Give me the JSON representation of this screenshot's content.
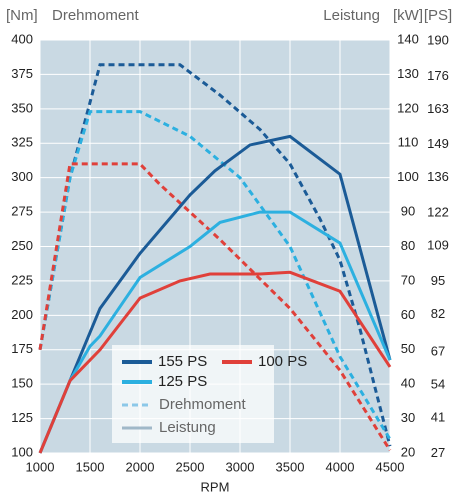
{
  "chart_data": {
    "type": "line",
    "y_unit": "[Nm]",
    "y_label": "Drehmoment",
    "y2_label": "Leistung",
    "y2_unit": "[kW]",
    "y3_unit": "[PS]",
    "x_label": "RPM",
    "xlim": [
      1000,
      4500
    ],
    "xticks": [
      1000,
      1500,
      2000,
      2500,
      3000,
      3500,
      4000,
      4500
    ],
    "ylim": [
      100,
      400
    ],
    "yticks": [
      100,
      125,
      150,
      175,
      200,
      225,
      250,
      275,
      300,
      325,
      350,
      375,
      400
    ],
    "y2lim": [
      20,
      140
    ],
    "y2ticks": [
      20,
      30,
      40,
      50,
      60,
      70,
      80,
      90,
      100,
      110,
      120,
      130,
      140
    ],
    "y3lim": [
      27.2,
      190.4
    ],
    "y3ticks": [
      27,
      41,
      54,
      67,
      82,
      95,
      109,
      122,
      136,
      149,
      163,
      176,
      190
    ],
    "grid": true,
    "background": "#c9d9e3",
    "series": [
      {
        "name": "155 PS",
        "color": "#1b5b97",
        "style": "dashed",
        "x": [
          1000,
          1300,
          1600,
          2000,
          2400,
          2800,
          3200,
          3500,
          3800,
          4000,
          4200,
          4500
        ],
        "values": [
          175,
          300,
          382,
          382,
          382,
          360,
          335,
          310,
          270,
          240,
          190,
          105
        ]
      },
      {
        "name": "125 PS",
        "color": "#2cb0e0",
        "style": "dashed",
        "x": [
          1000,
          1300,
          1500,
          2000,
          2500,
          3000,
          3500,
          4000,
          4500
        ],
        "values": [
          175,
          300,
          348,
          348,
          330,
          300,
          250,
          170,
          110
        ]
      },
      {
        "name": "100 PS",
        "color": "#e0403a",
        "style": "dashed",
        "x": [
          1000,
          1300,
          2000,
          2200,
          2800,
          3500,
          4000,
          4500
        ],
        "values": [
          175,
          310,
          310,
          295,
          255,
          205,
          160,
          102
        ]
      },
      {
        "name": "155 PS",
        "color": "#1b5b97",
        "style": "solid",
        "axis": "y2",
        "x": [
          1000,
          1300,
          1600,
          2000,
          2500,
          2750,
          3100,
          3500,
          4000,
          4500
        ],
        "values": [
          20,
          41,
          62,
          78,
          95,
          102,
          109.5,
          112,
          101,
          47
        ]
      },
      {
        "name": "125 PS",
        "color": "#2cb0e0",
        "style": "solid",
        "axis": "y2",
        "x": [
          1000,
          1300,
          1500,
          1600,
          2000,
          2500,
          2800,
          3200,
          3500,
          4000,
          4500
        ],
        "values": [
          20,
          41,
          51,
          54,
          71,
          80,
          87,
          90,
          90,
          81,
          47
        ]
      },
      {
        "name": "100 PS",
        "color": "#e0403a",
        "style": "solid",
        "axis": "y2",
        "x": [
          1000,
          1300,
          1600,
          2000,
          2400,
          2700,
          3200,
          3500,
          4000,
          4500
        ],
        "values": [
          20,
          41,
          50,
          65,
          70,
          72,
          72,
          72.5,
          67,
          45
        ]
      }
    ],
    "style_legend": [
      {
        "name": "Drehmoment",
        "style": "dashed",
        "color": "#8cc8e8"
      },
      {
        "name": "Leistung",
        "style": "solid",
        "color": "#a0b8c8"
      }
    ]
  }
}
